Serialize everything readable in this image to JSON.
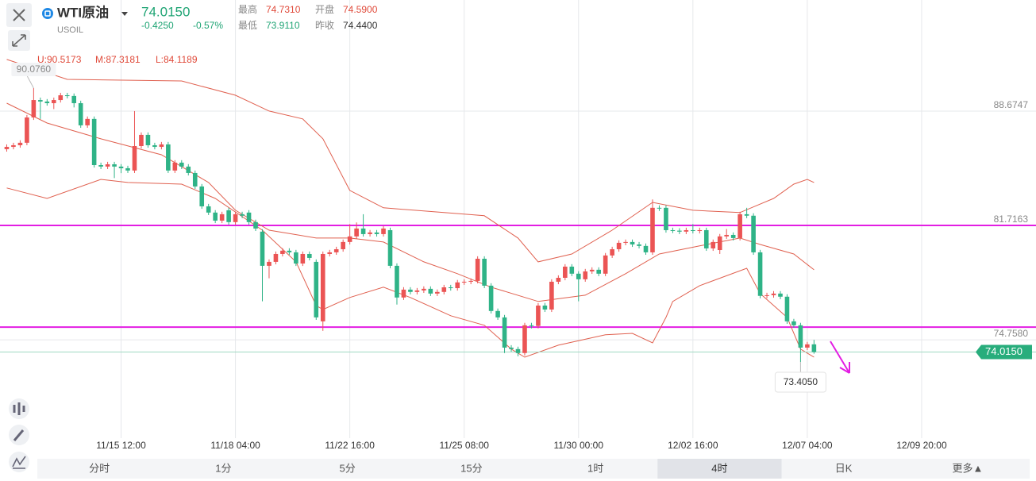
{
  "header": {
    "name": "WTI原油",
    "symbol": "USOIL",
    "price": "74.0150",
    "change": "-0.4250",
    "change_pct": "-0.57%",
    "stats": [
      {
        "label": "最高",
        "value": "74.7310"
      },
      {
        "label": "开盘",
        "value": "74.5900"
      },
      {
        "label": "最低",
        "value": "73.9110"
      },
      {
        "label": "昨收",
        "value": "74.4400"
      }
    ]
  },
  "indicator": {
    "upper": "U:90.5173",
    "middle": "M:87.3181",
    "lower": "L:84.1189"
  },
  "chart_data": {
    "type": "candlestick",
    "open": [
      86.36,
      86.5,
      86.6,
      86.75,
      88.29,
      89.35,
      89.26,
      89.16,
      89.35,
      89.64,
      89.6,
      89.16,
      87.81,
      88.2,
      85.39,
      85.3,
      85.44,
      85.3,
      85.2,
      85.06,
      86.55,
      87.23,
      86.6,
      86.5,
      86.65,
      85.06,
      85.54,
      85.3,
      84.91,
      84.09,
      82.88,
      82.5,
      82.01,
      82.64,
      81.92,
      82.4,
      82.5,
      81.92,
      81.34,
      79.26,
      79.5,
      79.98,
      80.18,
      80.08,
      79.4,
      79.98,
      79.5,
      75.88,
      79.98,
      80.08,
      80.27,
      80.71,
      81.05,
      81.53,
      81.19,
      81.29,
      81.19,
      81.43,
      79.26,
      77.33,
      77.81,
      77.67,
      77.76,
      77.86,
      77.57,
      77.67,
      77.95,
      77.9,
      78.25,
      78.29,
      78.34,
      79.69,
      78.05,
      76.51,
      76.12,
      74.28,
      74.19,
      73.95,
      75.64,
      75.6,
      76.84,
      76.6,
      78.29,
      78.53,
      79.21,
      78.78,
      78.44,
      78.92,
      79.02,
      78.78,
      79.89,
      80.27,
      80.66,
      80.71,
      80.56,
      80.47,
      80.08,
      82.79,
      82.79,
      81.43,
      81.4,
      81.34,
      81.43,
      81.38,
      81.43,
      80.32,
      80.22,
      81.05,
      81.14,
      80.95,
      82.4,
      82.31,
      80.08,
      77.43,
      77.47,
      77.57,
      77.38,
      75.88,
      75.64,
      74.28,
      74.48
    ],
    "high": [
      86.65,
      86.75,
      86.9,
      88.44,
      90.076,
      89.5,
      89.41,
      89.5,
      89.79,
      89.79,
      89.75,
      89.31,
      88.35,
      88.35,
      85.54,
      85.59,
      85.59,
      85.45,
      85.35,
      88.68,
      87.38,
      87.38,
      86.75,
      86.8,
      86.8,
      85.69,
      85.69,
      85.45,
      85.06,
      84.24,
      83.03,
      82.65,
      82.55,
      82.79,
      82.55,
      82.55,
      82.65,
      82.07,
      81.49,
      79.65,
      80.13,
      80.33,
      80.33,
      80.23,
      80.13,
      80.13,
      79.65,
      80.13,
      80.23,
      80.42,
      80.86,
      81.8,
      81.9,
      82.4,
      81.44,
      81.44,
      81.68,
      81.58,
      79.41,
      77.96,
      77.96,
      77.91,
      78.01,
      78.01,
      77.82,
      78.1,
      78.1,
      78.4,
      78.44,
      78.49,
      79.84,
      79.84,
      78.2,
      76.66,
      76.27,
      74.43,
      74.34,
      75.79,
      75.79,
      76.99,
      77,
      78.44,
      78.68,
      79.36,
      79.36,
      78.93,
      79.07,
      79.17,
      79.17,
      80.04,
      80.42,
      80.81,
      80.86,
      80.86,
      80.71,
      80.62,
      83.3,
      82.94,
      82.94,
      81.58,
      81.55,
      81.58,
      81.8,
      81.58,
      81.58,
      80.86,
      81.2,
      81.5,
      81.29,
      82.55,
      82.79,
      82.46,
      80.23,
      77.62,
      77.72,
      77.72,
      77.53,
      76.03,
      75.79,
      74.63,
      74.75
    ],
    "low": [
      86.21,
      86.35,
      86.45,
      86.6,
      88.14,
      88.2,
      89.01,
      88.8,
      89.2,
      89.45,
      88.9,
      87.66,
      87.66,
      85.24,
      85.15,
      85.15,
      84.6,
      84.9,
      84.91,
      84.91,
      86.4,
      86.45,
      86.35,
      86.35,
      84.91,
      84.91,
      85.15,
      84.76,
      83.94,
      82.73,
      82.35,
      81.86,
      81.86,
      81.77,
      81.77,
      82.16,
      81.77,
      81.38,
      77.1,
      78.5,
      79.35,
      79.83,
      79.93,
      79.25,
      79.25,
      79.59,
      75.97,
      75.3,
      79.83,
      79.93,
      80.12,
      80.56,
      80.9,
      81.04,
      81.04,
      81.04,
      81.04,
      79.11,
      76.9,
      77.18,
      77.52,
      77.52,
      77.61,
      77.42,
      77.42,
      77.52,
      77.75,
      77.75,
      78.1,
      78.14,
      78.19,
      77.9,
      76.36,
      75.97,
      73.95,
      74.04,
      73.75,
      73.8,
      75.45,
      75.45,
      76.45,
      76.45,
      78.14,
      78.38,
      78.63,
      77.1,
      78.29,
      78.77,
      78.63,
      78.63,
      79.74,
      80.12,
      80.51,
      80.41,
      80.32,
      79.93,
      79.93,
      82.6,
      81.28,
      81.25,
      81.19,
      81.19,
      81.23,
      81.23,
      80.17,
      80.17,
      79.98,
      80.9,
      80.8,
      80.8,
      82.16,
      79.93,
      77.28,
      77.28,
      77.32,
      77.23,
      75.73,
      75.49,
      73.405,
      74.13,
      73.91
    ],
    "close": [
      86.5,
      86.6,
      86.75,
      88.29,
      89.35,
      89.26,
      89.16,
      89.35,
      89.64,
      89.6,
      89.16,
      87.81,
      88.2,
      85.39,
      85.3,
      85.44,
      85.3,
      85.2,
      85.06,
      86.55,
      87.23,
      86.6,
      86.5,
      86.65,
      85.06,
      85.54,
      85.3,
      84.91,
      84.09,
      82.88,
      82.5,
      82.01,
      82.4,
      81.92,
      82.4,
      82.31,
      81.92,
      81.53,
      79.26,
      79.5,
      79.98,
      80.18,
      80.08,
      79.4,
      79.98,
      79.74,
      76.12,
      79.98,
      80.08,
      80.27,
      80.71,
      81.05,
      81.53,
      81.19,
      81.29,
      81.19,
      81.53,
      79.26,
      77.33,
      77.81,
      77.67,
      77.76,
      77.86,
      77.57,
      77.67,
      77.95,
      77.9,
      78.25,
      78.29,
      78.34,
      79.69,
      78.05,
      76.51,
      76.12,
      74.28,
      74.19,
      73.95,
      75.64,
      75.6,
      76.84,
      76.6,
      78.29,
      78.53,
      79.21,
      78.78,
      78.44,
      78.92,
      79.02,
      78.78,
      79.89,
      80.27,
      80.66,
      80.71,
      80.56,
      80.47,
      80.08,
      82.79,
      82.75,
      81.43,
      81.4,
      81.34,
      81.43,
      81.38,
      81.43,
      80.32,
      80.71,
      81.05,
      81.14,
      80.95,
      82.4,
      82.31,
      80.08,
      77.43,
      77.47,
      77.57,
      77.38,
      75.88,
      75.64,
      74.28,
      74.48,
      74.015
    ],
    "colors": {
      "up": "#eb5454",
      "down": "#2fb387"
    },
    "xlim": [
      -1,
      153
    ],
    "xticks": [
      {
        "value": 17,
        "label": "11/15 12:00"
      },
      {
        "value": 34,
        "label": "11/18 04:00"
      },
      {
        "value": 51,
        "label": "11/22 16:00"
      },
      {
        "value": 68,
        "label": "11/25 08:00"
      },
      {
        "value": 85,
        "label": "11/30 00:00"
      },
      {
        "value": 102,
        "label": "12/02 16:00"
      },
      {
        "value": 119,
        "label": "12/07 04:00"
      },
      {
        "value": 136,
        "label": "12/09 20:00"
      }
    ],
    "ylim": [
      68.77,
      95.44
    ],
    "yticks": [
      88.6747,
      81.7163,
      {
        "value": 74.758,
        "label": "74.7580"
      }
    ],
    "grid": true,
    "bands": [
      {
        "color": "#e0604f",
        "x": [
          0,
          9,
          26,
          34,
          39,
          44,
          47,
          51,
          56,
          65,
          71,
          76,
          79,
          84,
          90,
          96,
          102,
          109,
          114,
          117,
          119,
          120
        ],
        "values": [
          91.82,
          90.61,
          90.51,
          89.64,
          88.68,
          88.2,
          86.99,
          83.85,
          82.79,
          82.5,
          82.31,
          80.95,
          79.5,
          79.98,
          81.43,
          83.12,
          82.64,
          82.5,
          83.36,
          84.23,
          84.52,
          84.33
        ]
      },
      {
        "color": "#e0604f",
        "x": [
          0,
          6,
          14,
          23,
          30,
          34,
          39,
          46,
          51,
          56,
          62,
          67,
          72,
          79,
          86,
          92,
          97,
          103,
          109,
          112,
          117,
          120
        ],
        "values": [
          89.16,
          87.95,
          86.99,
          86.02,
          84.33,
          82.64,
          81.43,
          80.95,
          80.95,
          80.71,
          79.5,
          78.78,
          77.96,
          77.09,
          77.47,
          78.78,
          79.98,
          80.47,
          80.95,
          80.56,
          79.98,
          79.02
        ]
      },
      {
        "color": "#e0604f",
        "x": [
          0,
          6,
          14,
          18,
          26,
          31,
          38,
          43,
          46,
          47,
          51,
          56,
          60,
          66,
          71,
          75,
          77,
          82,
          89,
          93,
          96,
          98,
          99,
          103,
          110,
          112,
          116,
          118,
          120
        ],
        "values": [
          84.0,
          83.36,
          84.52,
          84.33,
          84.23,
          83.36,
          81.43,
          79.5,
          76.84,
          76.6,
          77.33,
          77.96,
          77.33,
          76.22,
          75.64,
          74.19,
          73.7,
          74.43,
          75.06,
          75.15,
          74.57,
          76.12,
          77.09,
          78.05,
          79.11,
          77.57,
          76.12,
          74.19,
          73.7
        ]
      }
    ],
    "hlines": [
      81.72,
      75.53
    ],
    "hline_color": "#e31ee3",
    "last_price": {
      "value": 74.015,
      "label": "74.0150"
    },
    "max_label": "90.0760",
    "min_label": "73.4050"
  },
  "tabs": [
    "分时",
    "1分",
    "5分",
    "15分",
    "1时",
    "4时",
    "日K",
    "更多▲"
  ],
  "active_tab": 5
}
